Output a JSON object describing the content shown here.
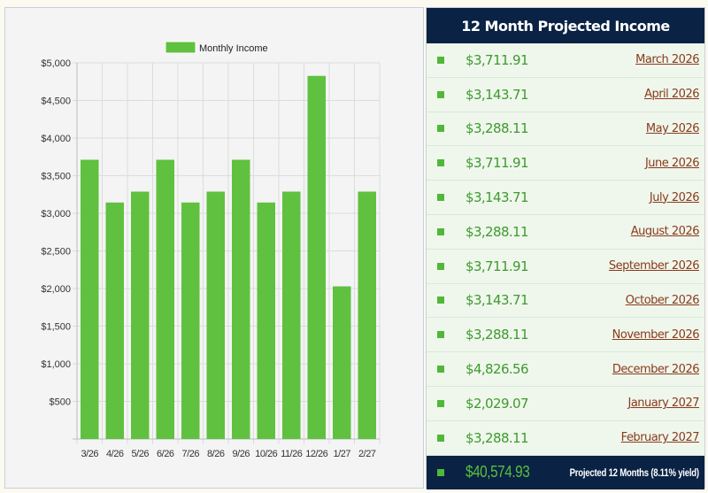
{
  "chart_data": {
    "type": "bar",
    "categories": [
      "3/26",
      "4/26",
      "5/26",
      "6/26",
      "7/26",
      "8/26",
      "9/26",
      "10/26",
      "11/26",
      "12/26",
      "1/27",
      "2/27"
    ],
    "series": [
      {
        "name": "Monthly Income",
        "color": "#5fc13f",
        "values": [
          3711.91,
          3143.71,
          3288.11,
          3711.91,
          3143.71,
          3288.11,
          3711.91,
          3143.71,
          3288.11,
          4826.56,
          2029.07,
          3288.11
        ]
      }
    ],
    "ylim": [
      0,
      5000
    ],
    "yticks": [
      500,
      1000,
      1500,
      2000,
      2500,
      3000,
      3500,
      4000,
      4500,
      5000
    ],
    "ytick_labels": [
      "$500",
      "$1,000",
      "$1,500",
      "$2,000",
      "$2,500",
      "$3,000",
      "$3,500",
      "$4,000",
      "$4,500",
      "$5,000"
    ],
    "grid": true,
    "legend": "top"
  },
  "table": {
    "title": "12 Month Projected Income",
    "rows": [
      {
        "amount": "$3,711.91",
        "month": "March 2026"
      },
      {
        "amount": "$3,143.71",
        "month": "April 2026"
      },
      {
        "amount": "$3,288.11",
        "month": "May 2026"
      },
      {
        "amount": "$3,711.91",
        "month": "June 2026"
      },
      {
        "amount": "$3,143.71",
        "month": "July 2026"
      },
      {
        "amount": "$3,288.11",
        "month": "August 2026"
      },
      {
        "amount": "$3,711.91",
        "month": "September 2026"
      },
      {
        "amount": "$3,143.71",
        "month": "October 2026"
      },
      {
        "amount": "$3,288.11",
        "month": "November 2026"
      },
      {
        "amount": "$4,826.56",
        "month": "December 2026"
      },
      {
        "amount": "$2,029.07",
        "month": "January 2027"
      },
      {
        "amount": "$3,288.11",
        "month": "February 2027"
      }
    ],
    "total": {
      "amount": "$40,574.93",
      "label": "Projected 12 Months (8.11% yield)"
    }
  }
}
